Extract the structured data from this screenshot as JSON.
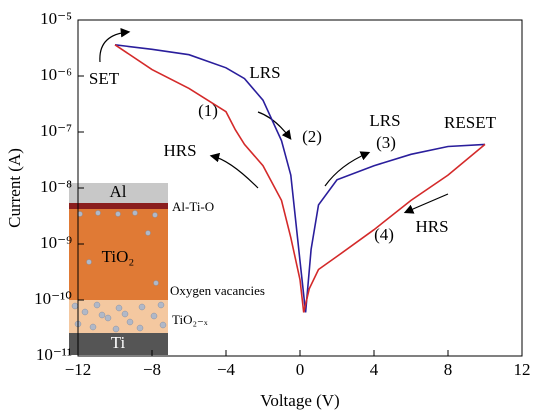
{
  "chart_data": {
    "type": "line",
    "xlabel": "Voltage (V)",
    "ylabel": "Current (A)",
    "log_y": true,
    "xlim": [
      -12,
      12
    ],
    "ylim": [
      1e-11,
      1e-05
    ],
    "xticks": [
      {
        "value": -12,
        "label": "−12"
      },
      {
        "value": -8,
        "label": "−8"
      },
      {
        "value": -4,
        "label": "−4"
      },
      0,
      4,
      8,
      12
    ],
    "yticks": [
      {
        "value": 1e-11,
        "label": "10⁻¹¹"
      },
      {
        "value": 1e-10,
        "label": "10⁻¹⁰"
      },
      {
        "value": 1e-09,
        "label": "10⁻⁹"
      },
      {
        "value": 1e-08,
        "label": "10⁻⁸"
      },
      {
        "value": 1e-07,
        "label": "10⁻⁷"
      },
      {
        "value": 1e-06,
        "label": "10⁻⁶"
      },
      {
        "value": 1e-05,
        "label": "10⁻⁵"
      }
    ],
    "series": [
      {
        "name": "LRS",
        "color": "#2a1e9c",
        "x": [
          -10,
          -8,
          -6,
          -4,
          -3,
          -2,
          -1,
          -0.5,
          0,
          0.3,
          0.6,
          1,
          2,
          4,
          6,
          8,
          10
        ],
        "values": [
          3.6e-06,
          3e-06,
          2.4e-06,
          1.4e-06,
          9e-07,
          3.7e-07,
          7e-08,
          1.7e-08,
          5e-10,
          6e-11,
          8e-10,
          5e-09,
          1.4e-08,
          2.5e-08,
          4e-08,
          5.5e-08,
          6e-08
        ]
      },
      {
        "name": "HRS",
        "color": "#d42a2a",
        "x": [
          -10,
          -8,
          -6,
          -4,
          -3.5,
          -3,
          -2,
          -1,
          -0.5,
          0,
          0.2,
          0.5,
          1,
          2,
          4,
          6,
          8,
          10
        ],
        "values": [
          3.6e-06,
          1.3e-06,
          6e-07,
          2.3e-07,
          1.1e-07,
          6e-08,
          2.5e-08,
          6e-09,
          1.3e-09,
          2.3e-10,
          6e-11,
          1.6e-10,
          3.5e-10,
          6e-10,
          1.8e-09,
          6e-09,
          1.7e-08,
          6e-08
        ]
      }
    ],
    "annotations": [
      "SET",
      "LRS",
      "(1)",
      "(2)",
      "HRS",
      "LRS",
      "(3)",
      "RESET",
      "(4)",
      "HRS"
    ],
    "inset": {
      "layers": [
        "Al",
        "Al-Ti-O",
        "TiO₂",
        "Oxygen vacancies",
        "TiO₂₋ₓ",
        "Ti"
      ]
    }
  }
}
